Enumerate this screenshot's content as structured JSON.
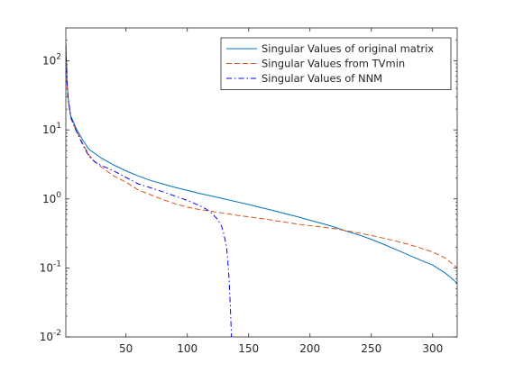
{
  "chart_data": {
    "type": "line",
    "title": "",
    "xlabel": "",
    "ylabel": "",
    "xlim": [
      1,
      320
    ],
    "ylim": [
      0.01,
      300
    ],
    "xscale": "linear",
    "yscale": "log",
    "grid": false,
    "legend_position": "top-right",
    "x_ticks": [
      50,
      100,
      150,
      200,
      250,
      300
    ],
    "x_tick_labels": [
      "50",
      "100",
      "150",
      "200",
      "250",
      "300"
    ],
    "y_ticks": [
      0.01,
      0.1,
      1,
      10,
      100
    ],
    "y_tick_labels": [
      {
        "base": "10",
        "exp": "-2"
      },
      {
        "base": "10",
        "exp": "-1"
      },
      {
        "base": "10",
        "exp": "0"
      },
      {
        "base": "10",
        "exp": "1"
      },
      {
        "base": "10",
        "exp": "2"
      }
    ],
    "series": [
      {
        "name": "Singular Values of original matrix",
        "color": "#0072BD",
        "style": "solid",
        "x": [
          1,
          2,
          3,
          5,
          8,
          10,
          15,
          20,
          30,
          40,
          50,
          60,
          70,
          80,
          90,
          100,
          110,
          120,
          130,
          140,
          150,
          160,
          170,
          180,
          190,
          200,
          210,
          220,
          230,
          240,
          250,
          260,
          270,
          280,
          290,
          300,
          310,
          315,
          320
        ],
        "y": [
          180,
          50,
          28,
          16,
          12,
          10,
          7,
          5.2,
          3.9,
          3.1,
          2.55,
          2.15,
          1.85,
          1.65,
          1.47,
          1.33,
          1.2,
          1.1,
          1.0,
          0.91,
          0.83,
          0.75,
          0.68,
          0.61,
          0.55,
          0.49,
          0.44,
          0.39,
          0.34,
          0.3,
          0.26,
          0.22,
          0.185,
          0.155,
          0.13,
          0.11,
          0.085,
          0.072,
          0.06
        ]
      },
      {
        "name": "Singular Values from TVmin",
        "color": "#D95319",
        "style": "dashed",
        "x": [
          1,
          2,
          3,
          5,
          8,
          10,
          15,
          20,
          25,
          30,
          40,
          50,
          60,
          70,
          80,
          90,
          100,
          110,
          120,
          130,
          140,
          150,
          160,
          170,
          180,
          190,
          200,
          210,
          220,
          230,
          240,
          250,
          260,
          270,
          280,
          290,
          300,
          310,
          320
        ],
        "y": [
          170,
          45,
          26,
          15,
          11,
          9.5,
          6.2,
          4.3,
          3.4,
          2.9,
          2.15,
          1.75,
          1.35,
          1.15,
          0.98,
          0.85,
          0.76,
          0.7,
          0.66,
          0.62,
          0.58,
          0.55,
          0.52,
          0.49,
          0.46,
          0.43,
          0.41,
          0.39,
          0.37,
          0.345,
          0.32,
          0.295,
          0.27,
          0.245,
          0.22,
          0.195,
          0.17,
          0.14,
          0.1
        ]
      },
      {
        "name": "Singular Values of NNM",
        "color": "#0000FF",
        "style": "dashdot",
        "x": [
          1,
          2,
          3,
          5,
          8,
          10,
          15,
          20,
          25,
          30,
          40,
          50,
          60,
          70,
          80,
          90,
          100,
          110,
          115,
          120,
          125,
          128,
          130,
          132,
          133,
          134,
          135,
          136
        ],
        "y": [
          175,
          48,
          27,
          15.5,
          11.2,
          9.2,
          6.0,
          4.1,
          3.4,
          3.05,
          2.55,
          2.05,
          1.65,
          1.45,
          1.27,
          1.1,
          0.95,
          0.8,
          0.72,
          0.62,
          0.5,
          0.4,
          0.3,
          0.2,
          0.13,
          0.07,
          0.03,
          0.01
        ]
      }
    ]
  }
}
